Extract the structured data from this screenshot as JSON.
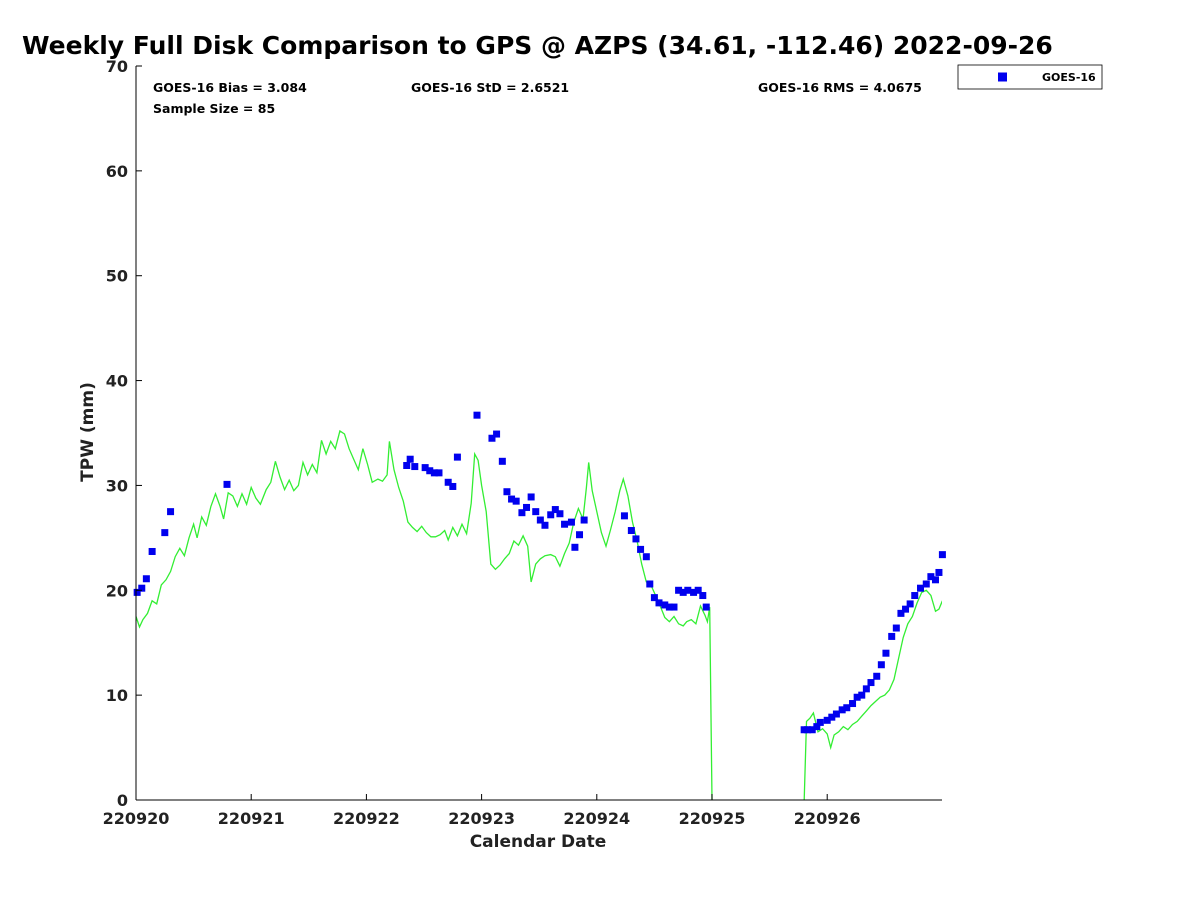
{
  "chart_data": {
    "type": "scatter",
    "title": "Weekly Full Disk Comparison to GPS @ AZPS (34.61, -112.46) 2022-09-26",
    "xlabel": "Calendar Date",
    "ylabel": "TPW (mm)",
    "xlim": [
      0,
      6.98
    ],
    "ylim": [
      0,
      70
    ],
    "x_ticks": [
      {
        "value": 0,
        "label": "220920"
      },
      {
        "value": 1,
        "label": "220921"
      },
      {
        "value": 2,
        "label": "220922"
      },
      {
        "value": 3,
        "label": "220923"
      },
      {
        "value": 4,
        "label": "220924"
      },
      {
        "value": 5,
        "label": "220925"
      },
      {
        "value": 6,
        "label": "220926"
      }
    ],
    "y_ticks": [
      0,
      10,
      20,
      30,
      40,
      50,
      60,
      70
    ],
    "grid": false,
    "legend": {
      "position": "top-right-outside",
      "entries": [
        "GOES-16"
      ]
    },
    "stats": {
      "bias": "GOES-16 Bias = 3.084",
      "std": "GOES-16 StD = 2.6521",
      "rms": "GOES-16 RMS = 4.0675",
      "sample": "Sample Size = 85"
    },
    "series": [
      {
        "name": "GOES-16",
        "kind": "scatter",
        "color": "#0000ee",
        "points": [
          [
            0.01,
            19.8
          ],
          [
            0.05,
            20.2
          ],
          [
            0.09,
            21.1
          ],
          [
            0.14,
            23.7
          ],
          [
            0.25,
            25.5
          ],
          [
            0.3,
            27.5
          ],
          [
            0.79,
            30.1
          ],
          [
            2.35,
            31.9
          ],
          [
            2.38,
            32.5
          ],
          [
            2.42,
            31.8
          ],
          [
            2.51,
            31.7
          ],
          [
            2.55,
            31.4
          ],
          [
            2.59,
            31.2
          ],
          [
            2.63,
            31.2
          ],
          [
            2.71,
            30.3
          ],
          [
            2.75,
            29.9
          ],
          [
            2.79,
            32.7
          ],
          [
            2.96,
            36.7
          ],
          [
            3.09,
            34.5
          ],
          [
            3.13,
            34.9
          ],
          [
            3.18,
            32.3
          ],
          [
            3.22,
            29.4
          ],
          [
            3.26,
            28.7
          ],
          [
            3.3,
            28.5
          ],
          [
            3.35,
            27.4
          ],
          [
            3.39,
            27.9
          ],
          [
            3.43,
            28.9
          ],
          [
            3.47,
            27.5
          ],
          [
            3.51,
            26.7
          ],
          [
            3.55,
            26.2
          ],
          [
            3.6,
            27.2
          ],
          [
            3.64,
            27.7
          ],
          [
            3.68,
            27.3
          ],
          [
            3.72,
            26.3
          ],
          [
            3.78,
            26.5
          ],
          [
            3.81,
            24.1
          ],
          [
            3.85,
            25.3
          ],
          [
            3.89,
            26.7
          ],
          [
            4.24,
            27.1
          ],
          [
            4.3,
            25.7
          ],
          [
            4.34,
            24.9
          ],
          [
            4.38,
            23.9
          ],
          [
            4.43,
            23.2
          ],
          [
            4.46,
            20.6
          ],
          [
            4.5,
            19.3
          ],
          [
            4.54,
            18.8
          ],
          [
            4.59,
            18.6
          ],
          [
            4.63,
            18.4
          ],
          [
            4.67,
            18.4
          ],
          [
            4.71,
            20.0
          ],
          [
            4.75,
            19.8
          ],
          [
            4.79,
            20.0
          ],
          [
            4.84,
            19.8
          ],
          [
            4.88,
            20.0
          ],
          [
            4.92,
            19.5
          ],
          [
            4.95,
            18.4
          ],
          [
            5.8,
            6.7
          ],
          [
            5.83,
            6.7
          ],
          [
            5.87,
            6.7
          ],
          [
            5.91,
            7.0
          ],
          [
            5.94,
            7.4
          ],
          [
            6.0,
            7.6
          ],
          [
            6.04,
            7.9
          ],
          [
            6.08,
            8.2
          ],
          [
            6.13,
            8.6
          ],
          [
            6.17,
            8.8
          ],
          [
            6.22,
            9.2
          ],
          [
            6.26,
            9.8
          ],
          [
            6.3,
            10.0
          ],
          [
            6.34,
            10.6
          ],
          [
            6.38,
            11.2
          ],
          [
            6.43,
            11.8
          ],
          [
            6.47,
            12.9
          ],
          [
            6.51,
            14.0
          ],
          [
            6.56,
            15.6
          ],
          [
            6.6,
            16.4
          ],
          [
            6.64,
            17.8
          ],
          [
            6.68,
            18.2
          ],
          [
            6.72,
            18.7
          ],
          [
            6.76,
            19.5
          ],
          [
            6.81,
            20.2
          ],
          [
            6.86,
            20.6
          ],
          [
            6.9,
            21.3
          ],
          [
            6.94,
            21.0
          ],
          [
            6.97,
            21.7
          ],
          [
            7.0,
            23.4
          ]
        ]
      },
      {
        "name": "GPS",
        "kind": "line",
        "color": "#33ee33",
        "points": [
          [
            0.0,
            17.5
          ],
          [
            0.03,
            16.5
          ],
          [
            0.06,
            17.2
          ],
          [
            0.1,
            17.8
          ],
          [
            0.14,
            19.0
          ],
          [
            0.18,
            18.7
          ],
          [
            0.22,
            20.5
          ],
          [
            0.26,
            21.0
          ],
          [
            0.3,
            21.8
          ],
          [
            0.34,
            23.2
          ],
          [
            0.38,
            24.0
          ],
          [
            0.42,
            23.3
          ],
          [
            0.46,
            25.0
          ],
          [
            0.5,
            26.3
          ],
          [
            0.53,
            25.0
          ],
          [
            0.57,
            27.0
          ],
          [
            0.61,
            26.2
          ],
          [
            0.65,
            28.0
          ],
          [
            0.69,
            29.2
          ],
          [
            0.73,
            28.0
          ],
          [
            0.76,
            26.8
          ],
          [
            0.8,
            29.3
          ],
          [
            0.84,
            29.0
          ],
          [
            0.88,
            28.0
          ],
          [
            0.92,
            29.2
          ],
          [
            0.96,
            28.2
          ],
          [
            1.0,
            29.8
          ],
          [
            1.04,
            28.8
          ],
          [
            1.08,
            28.2
          ],
          [
            1.13,
            29.6
          ],
          [
            1.17,
            30.3
          ],
          [
            1.21,
            32.3
          ],
          [
            1.25,
            30.8
          ],
          [
            1.29,
            29.6
          ],
          [
            1.33,
            30.5
          ],
          [
            1.37,
            29.5
          ],
          [
            1.41,
            30.0
          ],
          [
            1.45,
            32.2
          ],
          [
            1.49,
            31.0
          ],
          [
            1.53,
            32.0
          ],
          [
            1.57,
            31.2
          ],
          [
            1.61,
            34.3
          ],
          [
            1.65,
            33.0
          ],
          [
            1.69,
            34.2
          ],
          [
            1.73,
            33.5
          ],
          [
            1.77,
            35.2
          ],
          [
            1.81,
            34.9
          ],
          [
            1.85,
            33.5
          ],
          [
            1.89,
            32.5
          ],
          [
            1.93,
            31.5
          ],
          [
            1.97,
            33.5
          ],
          [
            2.01,
            32.0
          ],
          [
            2.05,
            30.3
          ],
          [
            2.1,
            30.6
          ],
          [
            2.14,
            30.4
          ],
          [
            2.18,
            31.0
          ],
          [
            2.2,
            34.2
          ],
          [
            2.24,
            31.5
          ],
          [
            2.28,
            29.8
          ],
          [
            2.32,
            28.5
          ],
          [
            2.36,
            26.5
          ],
          [
            2.4,
            26.0
          ],
          [
            2.44,
            25.6
          ],
          [
            2.48,
            26.1
          ],
          [
            2.52,
            25.5
          ],
          [
            2.56,
            25.1
          ],
          [
            2.6,
            25.1
          ],
          [
            2.64,
            25.3
          ],
          [
            2.68,
            25.7
          ],
          [
            2.71,
            24.8
          ],
          [
            2.75,
            26.0
          ],
          [
            2.79,
            25.2
          ],
          [
            2.83,
            26.3
          ],
          [
            2.87,
            25.4
          ],
          [
            2.91,
            28.3
          ],
          [
            2.94,
            33.0
          ],
          [
            2.97,
            32.4
          ],
          [
            3.0,
            30.0
          ],
          [
            3.04,
            27.5
          ],
          [
            3.08,
            22.5
          ],
          [
            3.12,
            22.0
          ],
          [
            3.16,
            22.4
          ],
          [
            3.2,
            23.0
          ],
          [
            3.24,
            23.5
          ],
          [
            3.28,
            24.7
          ],
          [
            3.32,
            24.3
          ],
          [
            3.36,
            25.2
          ],
          [
            3.4,
            24.2
          ],
          [
            3.43,
            20.8
          ],
          [
            3.47,
            22.5
          ],
          [
            3.51,
            23.0
          ],
          [
            3.55,
            23.3
          ],
          [
            3.6,
            23.4
          ],
          [
            3.64,
            23.2
          ],
          [
            3.68,
            22.3
          ],
          [
            3.72,
            23.5
          ],
          [
            3.76,
            24.5
          ],
          [
            3.8,
            26.5
          ],
          [
            3.84,
            27.8
          ],
          [
            3.88,
            26.8
          ],
          [
            3.91,
            29.8
          ],
          [
            3.93,
            32.2
          ],
          [
            3.96,
            29.5
          ],
          [
            4.0,
            27.5
          ],
          [
            4.04,
            25.5
          ],
          [
            4.08,
            24.2
          ],
          [
            4.12,
            25.8
          ],
          [
            4.16,
            27.5
          ],
          [
            4.2,
            29.5
          ],
          [
            4.23,
            30.6
          ],
          [
            4.27,
            29.0
          ],
          [
            4.31,
            26.5
          ],
          [
            4.35,
            24.7
          ],
          [
            4.39,
            22.5
          ],
          [
            4.43,
            20.8
          ],
          [
            4.47,
            20.5
          ],
          [
            4.51,
            19.5
          ],
          [
            4.55,
            18.5
          ],
          [
            4.59,
            17.4
          ],
          [
            4.63,
            17.0
          ],
          [
            4.67,
            17.5
          ],
          [
            4.71,
            16.8
          ],
          [
            4.75,
            16.6
          ],
          [
            4.78,
            17.0
          ],
          [
            4.82,
            17.2
          ],
          [
            4.86,
            16.8
          ],
          [
            4.9,
            18.5
          ],
          [
            4.94,
            17.6
          ],
          [
            4.96,
            17.0
          ],
          [
            4.98,
            18.4
          ],
          [
            5.0,
            0.0
          ],
          null,
          [
            5.8,
            0.0
          ],
          [
            5.82,
            7.5
          ],
          [
            5.85,
            7.8
          ],
          [
            5.88,
            8.3
          ],
          [
            5.92,
            6.5
          ],
          [
            5.96,
            6.8
          ],
          [
            6.0,
            6.3
          ],
          [
            6.03,
            5.0
          ],
          [
            6.06,
            6.2
          ],
          [
            6.1,
            6.5
          ],
          [
            6.14,
            7.0
          ],
          [
            6.18,
            6.7
          ],
          [
            6.22,
            7.2
          ],
          [
            6.26,
            7.5
          ],
          [
            6.3,
            8.0
          ],
          [
            6.34,
            8.5
          ],
          [
            6.38,
            9.0
          ],
          [
            6.42,
            9.4
          ],
          [
            6.46,
            9.8
          ],
          [
            6.5,
            10.0
          ],
          [
            6.54,
            10.5
          ],
          [
            6.58,
            11.5
          ],
          [
            6.62,
            13.5
          ],
          [
            6.66,
            15.5
          ],
          [
            6.7,
            16.8
          ],
          [
            6.74,
            17.5
          ],
          [
            6.78,
            18.8
          ],
          [
            6.82,
            19.8
          ],
          [
            6.86,
            20.0
          ],
          [
            6.9,
            19.5
          ],
          [
            6.94,
            18.0
          ],
          [
            6.97,
            18.2
          ],
          [
            7.0,
            19.0
          ]
        ]
      }
    ]
  }
}
